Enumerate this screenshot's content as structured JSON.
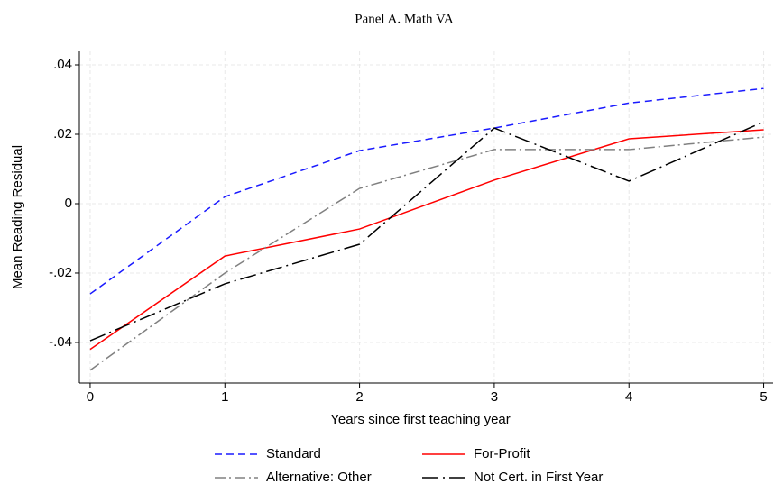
{
  "chart_data": {
    "type": "line",
    "title": "Panel A. Math VA",
    "x_label": "Years since first teaching year",
    "y_label": "Mean Reading Residual",
    "x": [
      0,
      1,
      2,
      3,
      4,
      5
    ],
    "series": [
      {
        "name": "Standard",
        "color": "#1a1aff",
        "style": "dashed",
        "values": [
          -0.026,
          0.002,
          0.0153,
          0.0218,
          0.029,
          0.0332
        ]
      },
      {
        "name": "For-Profit",
        "color": "#ff0000",
        "style": "solid",
        "values": [
          -0.042,
          -0.0151,
          -0.0073,
          0.0068,
          0.0187,
          0.0213
        ]
      },
      {
        "name": "Alternative: Other",
        "color": "#808080",
        "style": "dashdot",
        "values": [
          -0.048,
          -0.02,
          0.0044,
          0.0156,
          0.0156,
          0.0192
        ]
      },
      {
        "name": "Not Cert. in First Year",
        "color": "#000000",
        "style": "longdashdot",
        "values": [
          -0.0395,
          -0.0231,
          -0.0117,
          0.0218,
          0.0065,
          0.0236
        ]
      }
    ],
    "xlim": [
      -0.08,
      5.07
    ],
    "ylim": [
      -0.0517,
      0.0439
    ],
    "xticks": [
      0,
      1,
      2,
      3,
      4,
      5
    ],
    "yticks": [
      {
        "value": 0.04,
        "label": ".04"
      },
      {
        "value": 0.02,
        "label": ".02"
      },
      0,
      {
        "value": -0.02,
        "label": "-.02"
      },
      {
        "value": -0.04,
        "label": "-.04"
      }
    ],
    "grid": true,
    "legend": "bottom"
  }
}
